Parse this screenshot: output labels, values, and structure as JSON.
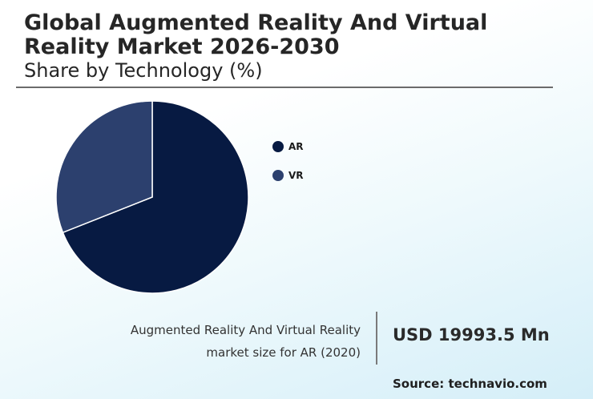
{
  "header": {
    "title": "Global Augmented Reality And Virtual Reality Market 2026-2030",
    "subtitle": "Share by Technology (%)"
  },
  "chart_data": {
    "type": "pie",
    "title": "Share by Technology (%)",
    "series": [
      {
        "name": "AR",
        "value": 69,
        "color": "#071a42"
      },
      {
        "name": "VR",
        "value": 31,
        "color": "#2c406e"
      }
    ],
    "legend_position": "right",
    "start_angle": "12 o'clock",
    "direction": "clockwise"
  },
  "footer": {
    "caption_line1": "Augmented Reality And Virtual Reality",
    "caption_line2": "market size for AR (2020)",
    "value": "USD 19993.5 Mn",
    "source": "Source: technavio.com"
  }
}
